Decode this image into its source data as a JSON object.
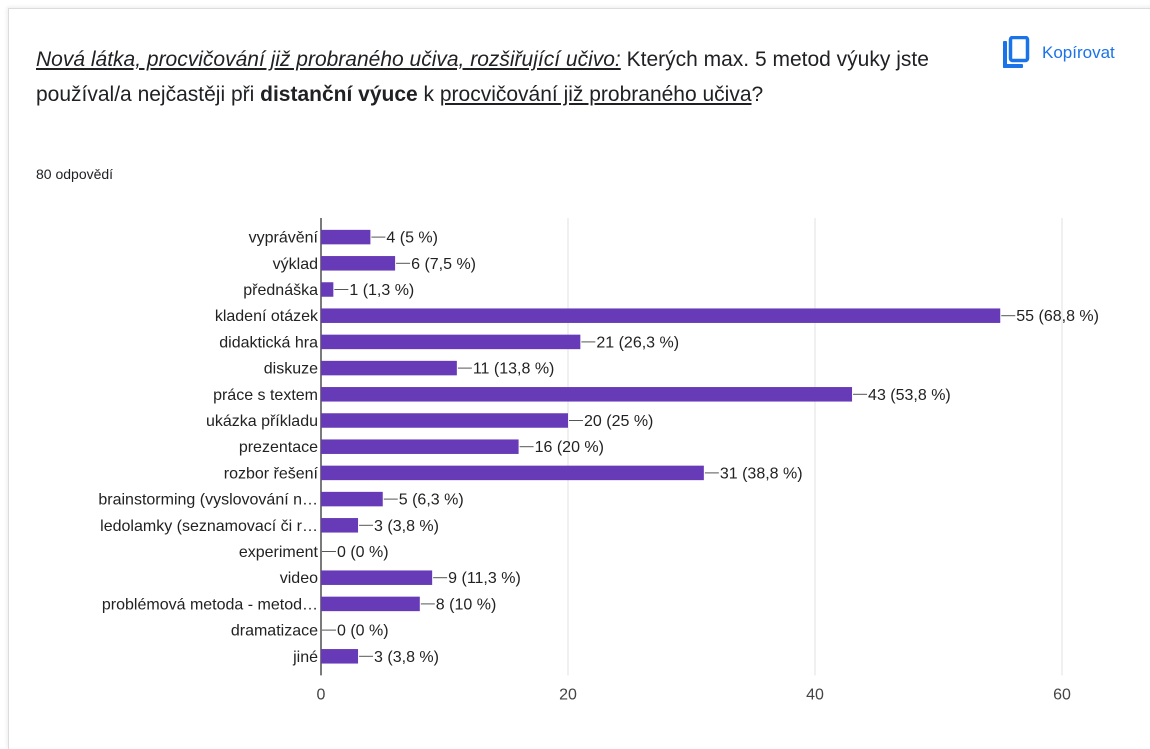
{
  "question": {
    "part1": "Nová látka, procvičování již probraného učiva, rozšiřující učivo:",
    "part2": " Kterých max. 5 metod výuky jste používal/a nejčastěji při ",
    "part3": "distanční výuce",
    "part4": " k ",
    "part5": "procvičování již probraného učiva",
    "part6": "?"
  },
  "response_count": "80 odpovědí",
  "copy_button": {
    "label": "Kopírovat",
    "icon": "copy-icon"
  },
  "colors": {
    "bar": "#673ab7",
    "accent": "#1a73e8",
    "grid": "#e0e0e0"
  },
  "chart_data": {
    "type": "bar",
    "orientation": "horizontal",
    "categories": [
      "vyprávění",
      "výklad",
      "přednáška",
      "kladení otázek",
      "didaktická hra",
      "diskuze",
      "práce s textem",
      "ukázka příkladu",
      "prezentace",
      "rozbor řešení",
      "brainstorming (vyslovování n…",
      "ledolamky (seznamovací či r…",
      "experiment",
      "video",
      "problémová metoda - metod…",
      "dramatizace",
      "jiné"
    ],
    "values": [
      4,
      6,
      1,
      55,
      21,
      11,
      43,
      20,
      16,
      31,
      5,
      3,
      0,
      9,
      8,
      0,
      3
    ],
    "data_labels": [
      "4 (5 %)",
      "6 (7,5 %)",
      "1 (1,3 %)",
      "55 (68,8 %)",
      "21 (26,3 %)",
      "11 (13,8 %)",
      "43 (53,8 %)",
      "20 (25 %)",
      "16 (20 %)",
      "31 (38,8 %)",
      "5 (6,3 %)",
      "3 (3,8 %)",
      "0 (0 %)",
      "9 (11,3 %)",
      "8 (10 %)",
      "0 (0 %)",
      "3 (3,8 %)"
    ],
    "xlim": [
      0,
      60
    ],
    "xticks": [
      0,
      20,
      40,
      60
    ],
    "grid": true
  }
}
